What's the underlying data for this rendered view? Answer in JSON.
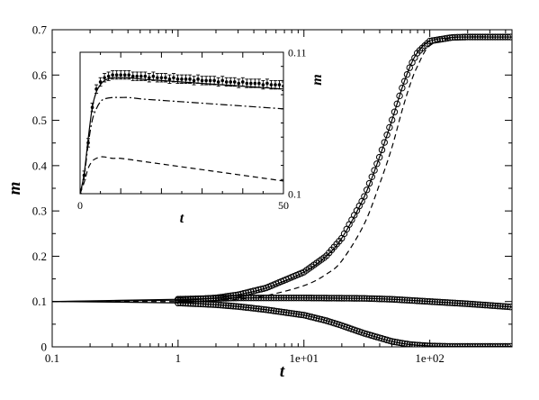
{
  "chart_data": [
    {
      "type": "scatter",
      "title": "",
      "xlabel": "t",
      "ylabel": "m",
      "xscale": "log",
      "xlim": [
        0.1,
        450
      ],
      "ylim": [
        0,
        0.7
      ],
      "grid": false,
      "legend": "none",
      "xticks": [
        {
          "value": 0.1,
          "label": "0.1"
        },
        {
          "value": 1,
          "label": "1"
        },
        {
          "value": 10,
          "label": "1e+01"
        },
        {
          "value": 100,
          "label": "1e+02"
        }
      ],
      "yticks": [
        {
          "value": 0,
          "label": "0"
        },
        {
          "value": 0.1,
          "label": "0.1"
        },
        {
          "value": 0.2,
          "label": "0.2"
        },
        {
          "value": 0.3,
          "label": "0.3"
        },
        {
          "value": 0.4,
          "label": "0.4"
        },
        {
          "value": 0.5,
          "label": "0.5"
        },
        {
          "value": 0.6,
          "label": "0.6"
        },
        {
          "value": 0.7,
          "label": "0.7"
        }
      ],
      "series": [
        {
          "style": "open-circles-with-solid-line",
          "x": [
            0.1,
            1,
            2,
            3,
            5,
            10,
            15,
            20,
            30,
            40,
            50,
            60,
            70,
            80,
            100,
            150,
            200,
            300,
            450
          ],
          "y": [
            0.1,
            0.103,
            0.108,
            0.115,
            0.13,
            0.165,
            0.2,
            0.24,
            0.33,
            0.42,
            0.5,
            0.57,
            0.62,
            0.65,
            0.675,
            0.683,
            0.684,
            0.684,
            0.684
          ]
        },
        {
          "style": "dashed-line",
          "x": [
            0.1,
            1,
            2,
            3,
            5,
            10,
            15,
            20,
            30,
            40,
            50,
            60,
            70,
            80,
            100,
            150,
            200,
            300,
            450
          ],
          "y": [
            0.1,
            0.1,
            0.102,
            0.105,
            0.113,
            0.135,
            0.16,
            0.19,
            0.27,
            0.36,
            0.44,
            0.52,
            0.58,
            0.62,
            0.665,
            0.682,
            0.684,
            0.684,
            0.684
          ]
        },
        {
          "style": "open-circles-with-solid-line",
          "x": [
            0.1,
            1,
            3,
            10,
            30,
            50,
            100,
            200,
            450
          ],
          "y": [
            0.1,
            0.105,
            0.108,
            0.108,
            0.107,
            0.105,
            0.1,
            0.095,
            0.088
          ]
        },
        {
          "style": "open-circles-with-solid-line",
          "x": [
            0.1,
            1,
            2,
            3,
            5,
            10,
            15,
            20,
            30,
            50,
            70,
            100,
            150,
            200,
            450
          ],
          "y": [
            0.1,
            0.097,
            0.093,
            0.089,
            0.082,
            0.07,
            0.058,
            0.047,
            0.03,
            0.012,
            0.005,
            0.002,
            0.001,
            0.001,
            0.001
          ]
        }
      ]
    },
    {
      "type": "line",
      "title": "",
      "xlabel": "t",
      "ylabel": "m",
      "xlim": [
        0,
        50
      ],
      "ylim": [
        0.1,
        0.11
      ],
      "grid": false,
      "legend": "none",
      "xticks": [
        {
          "value": 0,
          "label": "0"
        },
        {
          "value": 50,
          "label": "50"
        }
      ],
      "yticks": [
        {
          "value": 0.1,
          "label": "0.1"
        },
        {
          "value": 0.11,
          "label": "0.11"
        }
      ],
      "series": [
        {
          "style": "circles-with-error-bars",
          "x": [
            0,
            1,
            2,
            3,
            4,
            5,
            6,
            7,
            8,
            9,
            10,
            11,
            12,
            13,
            14,
            15,
            16,
            17,
            18,
            19,
            20,
            21,
            22,
            23,
            24,
            25,
            26,
            27,
            28,
            29,
            30,
            31,
            32,
            33,
            34,
            35,
            36,
            37,
            38,
            39,
            40,
            41,
            42,
            43,
            44,
            45,
            46,
            47,
            48,
            49,
            50
          ],
          "y": [
            0.1,
            0.1013,
            0.1036,
            0.1061,
            0.1074,
            0.1079,
            0.1082,
            0.1083,
            0.1084,
            0.1084,
            0.1084,
            0.1084,
            0.1084,
            0.1083,
            0.1083,
            0.1083,
            0.1083,
            0.1082,
            0.1083,
            0.1082,
            0.1082,
            0.1082,
            0.1081,
            0.1082,
            0.1081,
            0.1081,
            0.1081,
            0.1081,
            0.108,
            0.1081,
            0.108,
            0.108,
            0.108,
            0.108,
            0.1079,
            0.108,
            0.1079,
            0.1079,
            0.1079,
            0.1078,
            0.1079,
            0.1078,
            0.1078,
            0.1078,
            0.1078,
            0.1077,
            0.1078,
            0.1077,
            0.1077,
            0.1077,
            0.1076
          ],
          "error": 0.0003
        },
        {
          "style": "solid-line",
          "x": [
            0,
            1,
            2,
            3,
            4,
            5,
            6,
            8,
            10,
            12,
            15,
            20,
            25,
            30,
            35,
            40,
            45,
            50
          ],
          "y": [
            0.1,
            0.1014,
            0.1039,
            0.1061,
            0.1072,
            0.1077,
            0.108,
            0.1082,
            0.1082,
            0.1082,
            0.1081,
            0.108,
            0.1079,
            0.1078,
            0.1077,
            0.1076,
            0.1075,
            0.1074
          ]
        },
        {
          "style": "dash-dot-line",
          "x": [
            0,
            1,
            2,
            3,
            4,
            5,
            6,
            8,
            10,
            12,
            15,
            20,
            25,
            30,
            35,
            40,
            45,
            50
          ],
          "y": [
            0.1,
            0.1012,
            0.1035,
            0.1052,
            0.106,
            0.1065,
            0.1067,
            0.1068,
            0.1068,
            0.1068,
            0.1067,
            0.1066,
            0.1065,
            0.1064,
            0.1063,
            0.1062,
            0.1061,
            0.106
          ]
        },
        {
          "style": "dashed-line",
          "x": [
            0,
            1,
            2,
            3,
            4,
            5,
            6,
            8,
            10,
            15,
            20,
            25,
            30,
            35,
            40,
            45,
            50
          ],
          "y": [
            0.1,
            0.1008,
            0.1018,
            0.1023,
            0.1025,
            0.1026,
            0.1026,
            0.1025,
            0.1025,
            0.1023,
            0.1021,
            0.1019,
            0.1017,
            0.1015,
            0.1013,
            0.1011,
            0.1009
          ]
        }
      ]
    }
  ]
}
